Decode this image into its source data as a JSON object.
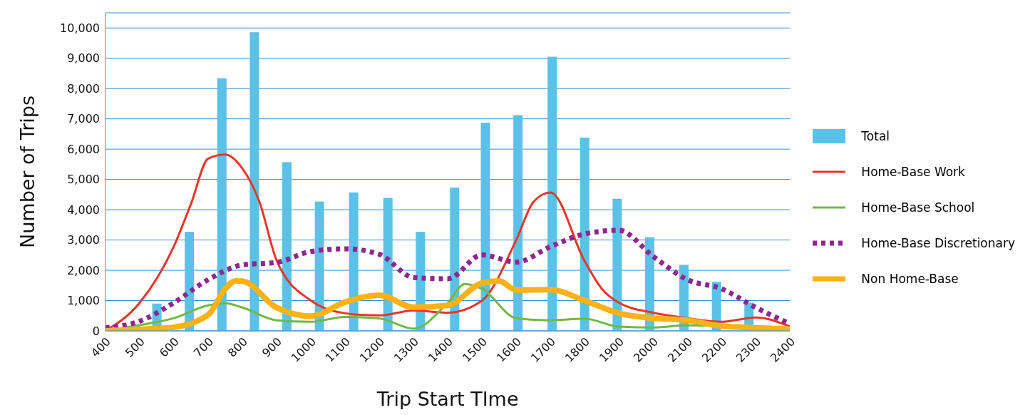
{
  "chart_data": {
    "type": "bar",
    "xlabel": "Trip Start TIme",
    "ylabel": "Number of Trips",
    "xlim": [
      400,
      2400
    ],
    "xticks": [
      400,
      500,
      600,
      700,
      800,
      900,
      1000,
      1100,
      1200,
      1300,
      1400,
      1500,
      1600,
      1700,
      1800,
      1900,
      2000,
      2100,
      2200,
      2300,
      2400
    ],
    "ylim": [
      0,
      10500
    ],
    "yticks": [
      0,
      {
        "value": 1000,
        "label": "1,000"
      },
      {
        "value": 2000,
        "label": "2,000"
      },
      {
        "value": 3000,
        "label": "3,000"
      },
      {
        "value": 4000,
        "label": "4,000"
      },
      {
        "value": 5000,
        "label": "5,000"
      },
      {
        "value": 6000,
        "label": "6,000"
      },
      {
        "value": 7000,
        "label": "7,000"
      },
      {
        "value": 8000,
        "label": "8,000"
      },
      {
        "value": 9000,
        "label": "9,000"
      },
      {
        "value": 10000,
        "label": "10,000"
      }
    ],
    "grid": "y",
    "legend": "right",
    "marker": "none",
    "series": [
      {
        "name": "Total",
        "color": "#5bc2e7",
        "x": [
          550,
          645,
          740,
          835,
          930,
          1025,
          1125,
          1225,
          1320,
          1420,
          1510,
          1605,
          1705,
          1800,
          1895,
          1990,
          2090,
          2185,
          2280
        ],
        "values": [
          900,
          3270,
          8340,
          9860,
          5570,
          4270,
          4570,
          4390,
          3270,
          4730,
          6870,
          7120,
          9050,
          6380,
          4360,
          3090,
          2180,
          1620,
          930
        ]
      },
      {
        "name": "Home-Base Work",
        "type": "line",
        "line_style": "solid",
        "color": "#e8352a",
        "x": [
          400,
          500,
          600,
          650,
          700,
          750,
          800,
          850,
          900,
          1000,
          1100,
          1200,
          1300,
          1400,
          1500,
          1600,
          1650,
          1700,
          1800,
          1850,
          1900,
          2000,
          2100,
          2200,
          2300,
          2400
        ],
        "values": [
          0,
          930,
          2800,
          4200,
          5690,
          5820,
          5360,
          4250,
          2320,
          1000,
          580,
          510,
          670,
          600,
          1000,
          3000,
          4250,
          4570,
          2300,
          1390,
          930,
          600,
          420,
          300,
          440,
          140
        ]
      },
      {
        "name": "Home-Base School",
        "type": "line",
        "line_style": "solid",
        "color": "#72b844",
        "x": [
          400,
          500,
          600,
          700,
          750,
          800,
          900,
          1000,
          1100,
          1200,
          1300,
          1400,
          1450,
          1500,
          1600,
          1700,
          1800,
          1900,
          2000,
          2100,
          2200
        ],
        "values": [
          0,
          190,
          420,
          840,
          910,
          770,
          350,
          300,
          460,
          410,
          70,
          930,
          1550,
          1390,
          420,
          350,
          400,
          140,
          110,
          180,
          160
        ]
      },
      {
        "name": "Home-Base Discretionary",
        "type": "line",
        "line_style": "dotted",
        "color": "#8e278f",
        "x": [
          400,
          500,
          600,
          700,
          800,
          900,
          1000,
          1100,
          1200,
          1300,
          1400,
          1500,
          1600,
          1700,
          1800,
          1900,
          2000,
          2100,
          2200,
          2300,
          2400
        ],
        "values": [
          100,
          320,
          930,
          1690,
          2180,
          2260,
          2620,
          2710,
          2530,
          1760,
          1720,
          2510,
          2270,
          2780,
          3200,
          3320,
          2460,
          1690,
          1390,
          770,
          230
        ]
      },
      {
        "name": "Non Home-Base",
        "type": "line",
        "line_style": "solid",
        "color": "#fbb216",
        "x": [
          400,
          500,
          600,
          700,
          750,
          780,
          800,
          900,
          1000,
          1100,
          1200,
          1300,
          1400,
          1500,
          1550,
          1600,
          1700,
          1800,
          1900,
          2000,
          2100,
          2200,
          2300,
          2400
        ],
        "values": [
          0,
          50,
          120,
          530,
          1390,
          1650,
          1640,
          770,
          490,
          950,
          1180,
          780,
          840,
          1580,
          1650,
          1350,
          1360,
          1000,
          580,
          420,
          350,
          160,
          100,
          60
        ]
      }
    ]
  }
}
